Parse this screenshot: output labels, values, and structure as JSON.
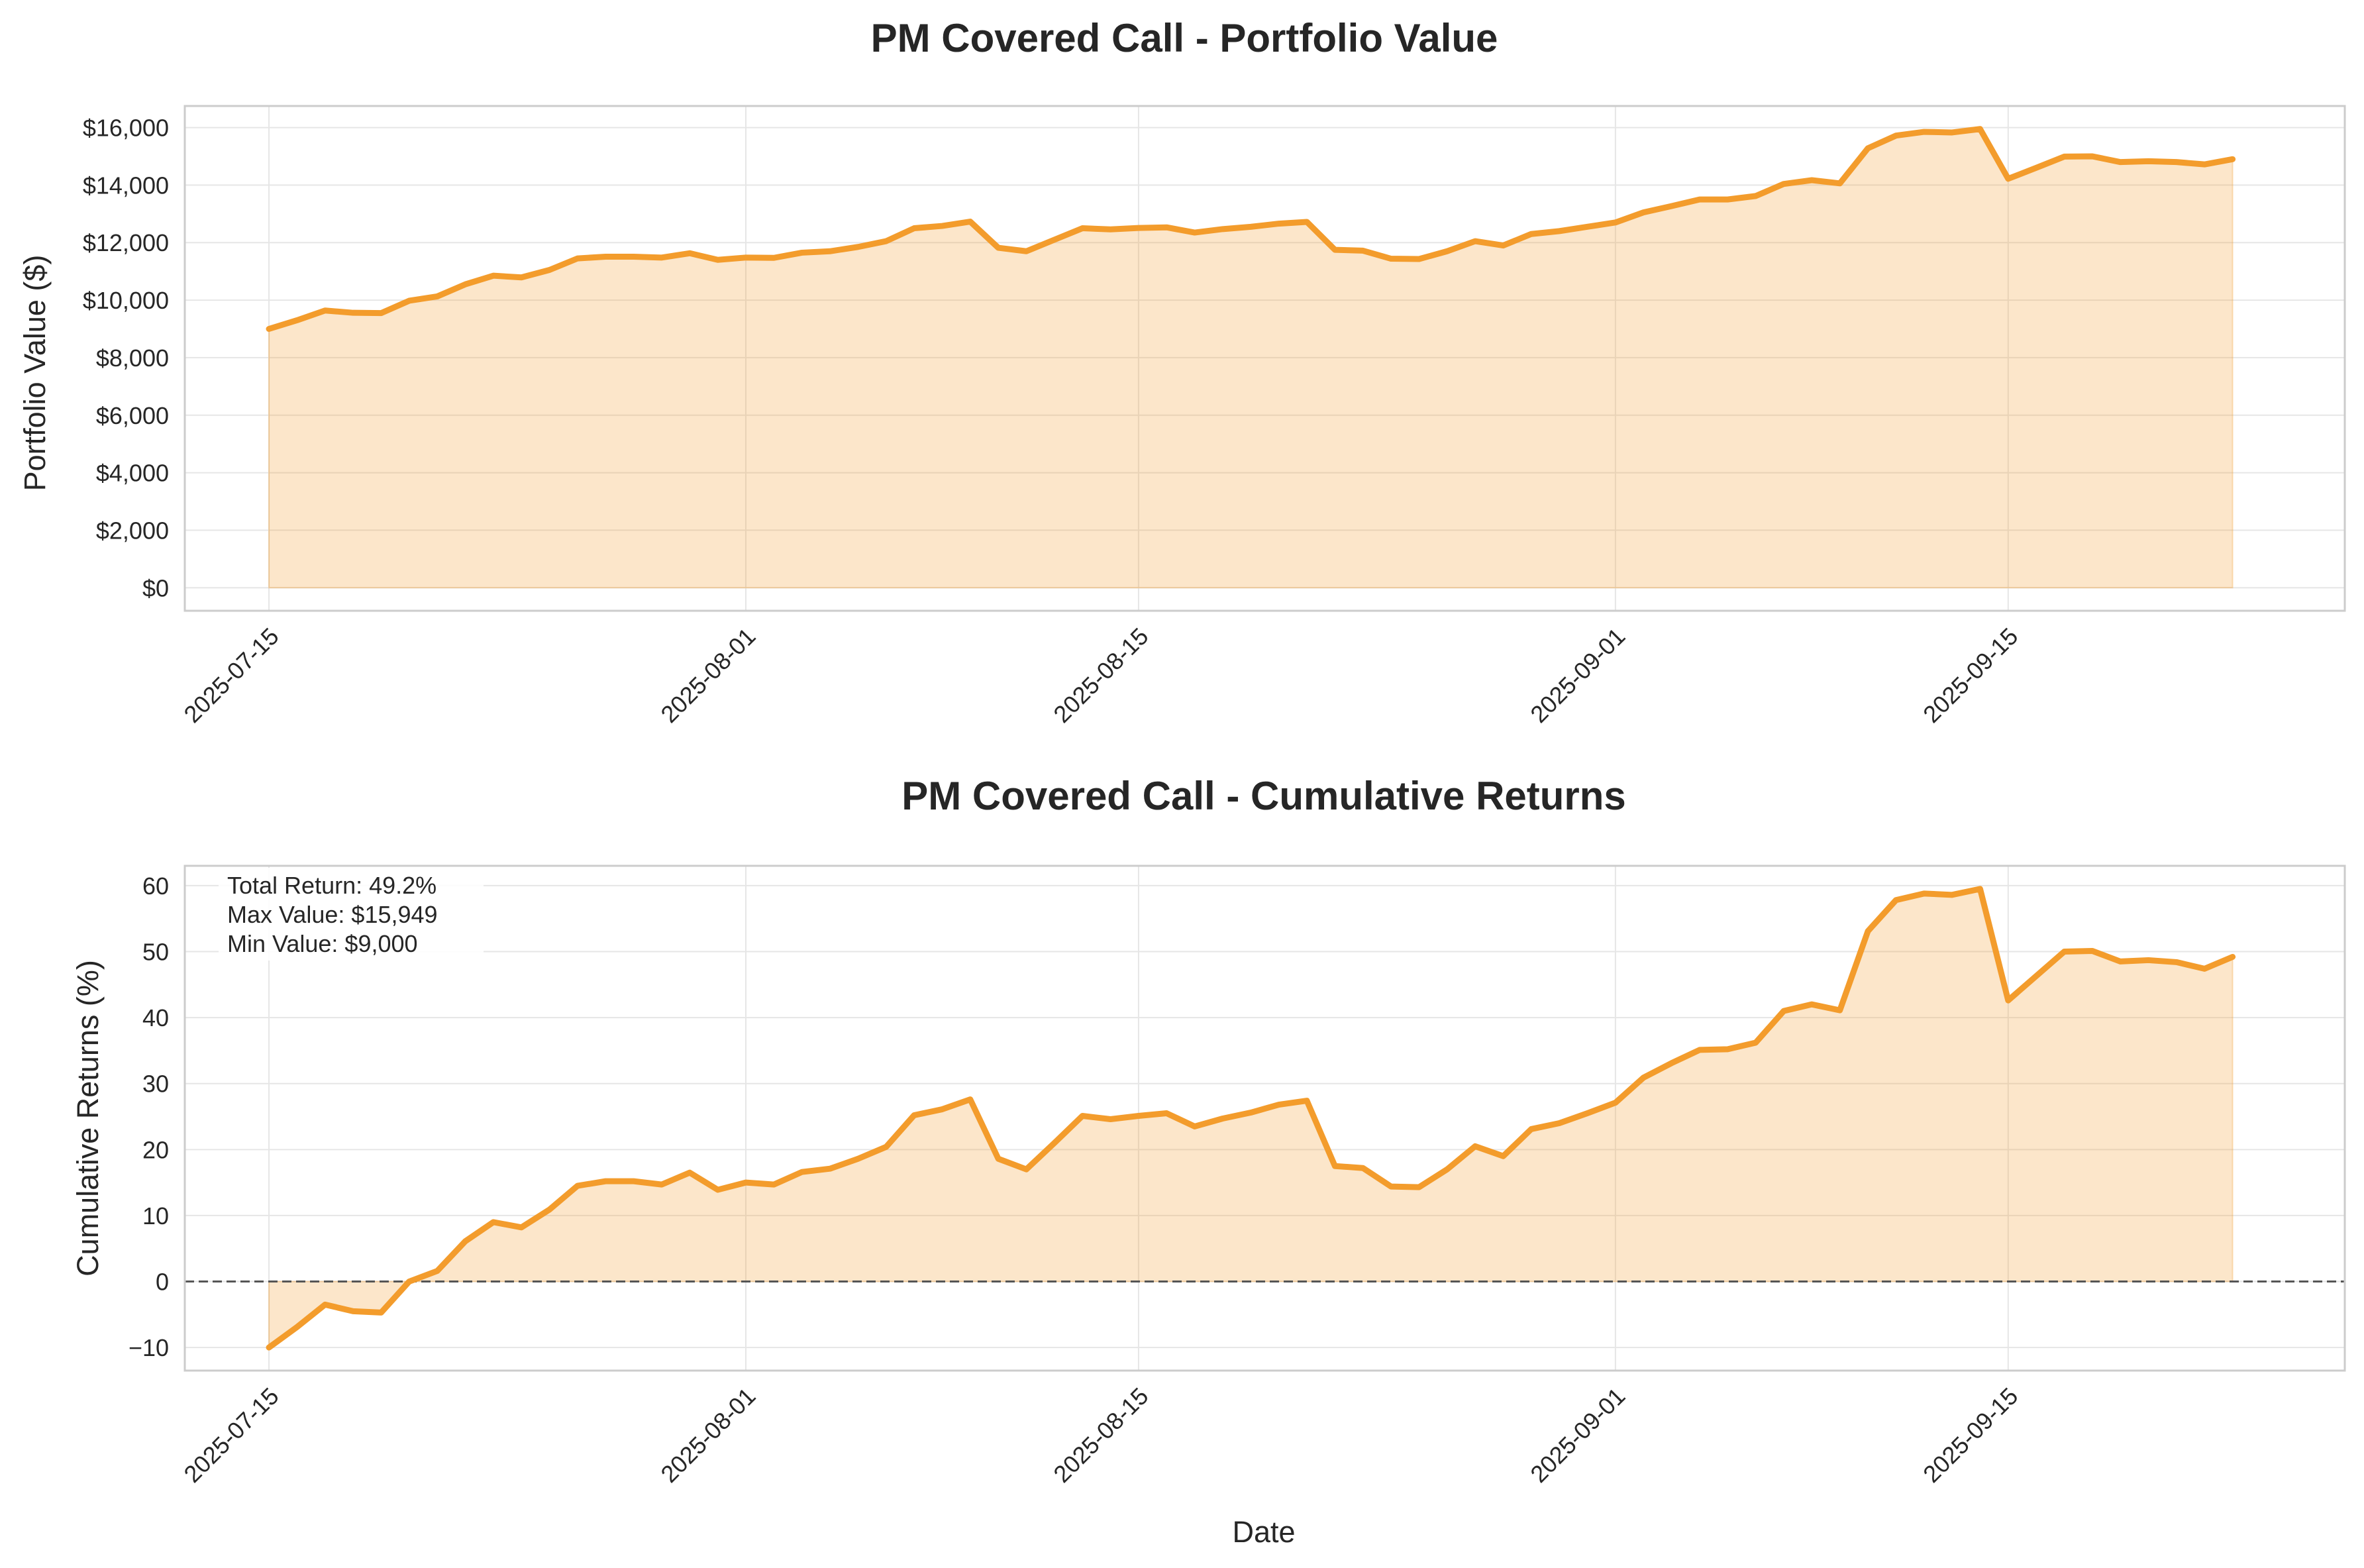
{
  "chart_data": [
    {
      "type": "area",
      "title": "PM Covered Call - Portfolio Value",
      "xlabel": "",
      "ylabel": "Portfolio Value ($)",
      "x_ticks": [
        "2025-07-15",
        "2025-08-01",
        "2025-08-15",
        "2025-09-01",
        "2025-09-15"
      ],
      "y_ticks": [
        0,
        2000,
        4000,
        6000,
        8000,
        10000,
        12000,
        14000,
        16000
      ],
      "y_tick_labels": [
        "$0",
        "$2,000",
        "$4,000",
        "$6,000",
        "$8,000",
        "$10,000",
        "$12,000",
        "$14,000",
        "$16,000"
      ],
      "xlim": [
        "2025-07-12",
        "2025-09-27"
      ],
      "ylim": [
        -800,
        16750
      ],
      "grid": true,
      "color": "#f39c2c",
      "series": [
        {
          "x": [
            "2025-07-15",
            "2025-07-16",
            "2025-07-17",
            "2025-07-18",
            "2025-07-19",
            "2025-07-20",
            "2025-07-21",
            "2025-07-22",
            "2025-07-23",
            "2025-07-24",
            "2025-07-25",
            "2025-07-26",
            "2025-07-27",
            "2025-07-28",
            "2025-07-29",
            "2025-07-30",
            "2025-07-31",
            "2025-08-01",
            "2025-08-02",
            "2025-08-03",
            "2025-08-04",
            "2025-08-05",
            "2025-08-06",
            "2025-08-07",
            "2025-08-08",
            "2025-08-09",
            "2025-08-10",
            "2025-08-11",
            "2025-08-12",
            "2025-08-13",
            "2025-08-14",
            "2025-08-15",
            "2025-08-16",
            "2025-08-17",
            "2025-08-18",
            "2025-08-19",
            "2025-08-20",
            "2025-08-21",
            "2025-08-22",
            "2025-08-23",
            "2025-08-24",
            "2025-08-25",
            "2025-08-26",
            "2025-08-27",
            "2025-08-28",
            "2025-08-29",
            "2025-08-30",
            "2025-08-31",
            "2025-09-01",
            "2025-09-02",
            "2025-09-03",
            "2025-09-04",
            "2025-09-05",
            "2025-09-06",
            "2025-09-07",
            "2025-09-08",
            "2025-09-09",
            "2025-09-10",
            "2025-09-11",
            "2025-09-12",
            "2025-09-13",
            "2025-09-14",
            "2025-09-15",
            "2025-09-16",
            "2025-09-17",
            "2025-09-18",
            "2025-09-19",
            "2025-09-20",
            "2025-09-21",
            "2025-09-22",
            "2025-09-23"
          ],
          "y": [
            9000,
            9300,
            9640,
            9560,
            9550,
            9980,
            10130,
            10550,
            10850,
            10790,
            11050,
            11450,
            11510,
            11510,
            11480,
            11630,
            11400,
            11480,
            11470,
            11650,
            11700,
            11850,
            12050,
            12500,
            12580,
            12730,
            11820,
            11700,
            12100,
            12500,
            12460,
            12510,
            12530,
            12350,
            12470,
            12550,
            12660,
            12720,
            11750,
            11720,
            11440,
            11430,
            11700,
            12050,
            11900,
            12300,
            12400,
            12550,
            12700,
            13050,
            13270,
            13500,
            13500,
            13620,
            14040,
            14170,
            14060,
            15280,
            15720,
            15850,
            15830,
            15949,
            14220,
            14600,
            14990,
            15000,
            14800,
            14830,
            14800,
            14720,
            14900
          ]
        }
      ]
    },
    {
      "type": "area",
      "title": "PM Covered Call - Cumulative Returns",
      "xlabel": "Date",
      "ylabel": "Cumulative Returns (%)",
      "x_ticks": [
        "2025-07-15",
        "2025-08-01",
        "2025-08-15",
        "2025-09-01",
        "2025-09-15"
      ],
      "y_ticks": [
        -10,
        0,
        10,
        20,
        30,
        40,
        50,
        60
      ],
      "y_tick_labels": [
        "−10",
        "0",
        "10",
        "20",
        "30",
        "40",
        "50",
        "60"
      ],
      "xlim": [
        "2025-07-12",
        "2025-09-27"
      ],
      "ylim": [
        -13.5,
        63
      ],
      "grid": true,
      "color": "#f39c2c",
      "reference_line": {
        "y": 0,
        "style": "dashed",
        "color": "#555555"
      },
      "annotations": [
        "Total Return: 49.2%",
        "Max Value: $15,949",
        "Min Value: $9,000"
      ],
      "series": [
        {
          "x": [
            "2025-07-15",
            "2025-07-16",
            "2025-07-17",
            "2025-07-18",
            "2025-07-19",
            "2025-07-20",
            "2025-07-21",
            "2025-07-22",
            "2025-07-23",
            "2025-07-24",
            "2025-07-25",
            "2025-07-26",
            "2025-07-27",
            "2025-07-28",
            "2025-07-29",
            "2025-07-30",
            "2025-07-31",
            "2025-08-01",
            "2025-08-02",
            "2025-08-03",
            "2025-08-04",
            "2025-08-05",
            "2025-08-06",
            "2025-08-07",
            "2025-08-08",
            "2025-08-09",
            "2025-08-10",
            "2025-08-11",
            "2025-08-12",
            "2025-08-13",
            "2025-08-14",
            "2025-08-15",
            "2025-08-16",
            "2025-08-17",
            "2025-08-18",
            "2025-08-19",
            "2025-08-20",
            "2025-08-21",
            "2025-08-22",
            "2025-08-23",
            "2025-08-24",
            "2025-08-25",
            "2025-08-26",
            "2025-08-27",
            "2025-08-28",
            "2025-08-29",
            "2025-08-30",
            "2025-08-31",
            "2025-09-01",
            "2025-09-02",
            "2025-09-03",
            "2025-09-04",
            "2025-09-05",
            "2025-09-06",
            "2025-09-07",
            "2025-09-08",
            "2025-09-09",
            "2025-09-10",
            "2025-09-11",
            "2025-09-12",
            "2025-09-13",
            "2025-09-14",
            "2025-09-15",
            "2025-09-16",
            "2025-09-17",
            "2025-09-18",
            "2025-09-19",
            "2025-09-20",
            "2025-09-21",
            "2025-09-22",
            "2025-09-23"
          ],
          "y": [
            -10,
            -6.9,
            -3.5,
            -4.5,
            -4.7,
            0,
            1.6,
            6.1,
            9,
            8.2,
            10.9,
            14.5,
            15.2,
            15.2,
            14.7,
            16.5,
            13.9,
            15,
            14.7,
            16.6,
            17.1,
            18.6,
            20.4,
            25.2,
            26.1,
            27.6,
            18.6,
            17,
            21,
            25.1,
            24.6,
            25.1,
            25.5,
            23.5,
            24.7,
            25.6,
            26.8,
            27.4,
            17.5,
            17.2,
            14.4,
            14.3,
            17,
            20.5,
            19,
            23.1,
            24,
            25.5,
            27.1,
            30.9,
            33.1,
            35.1,
            35.2,
            36.2,
            41,
            42,
            41.1,
            53.1,
            57.8,
            58.8,
            58.6,
            59.5,
            42.6,
            46.3,
            50,
            50.1,
            48.5,
            48.7,
            48.4,
            47.4,
            49.2
          ]
        }
      ]
    }
  ]
}
